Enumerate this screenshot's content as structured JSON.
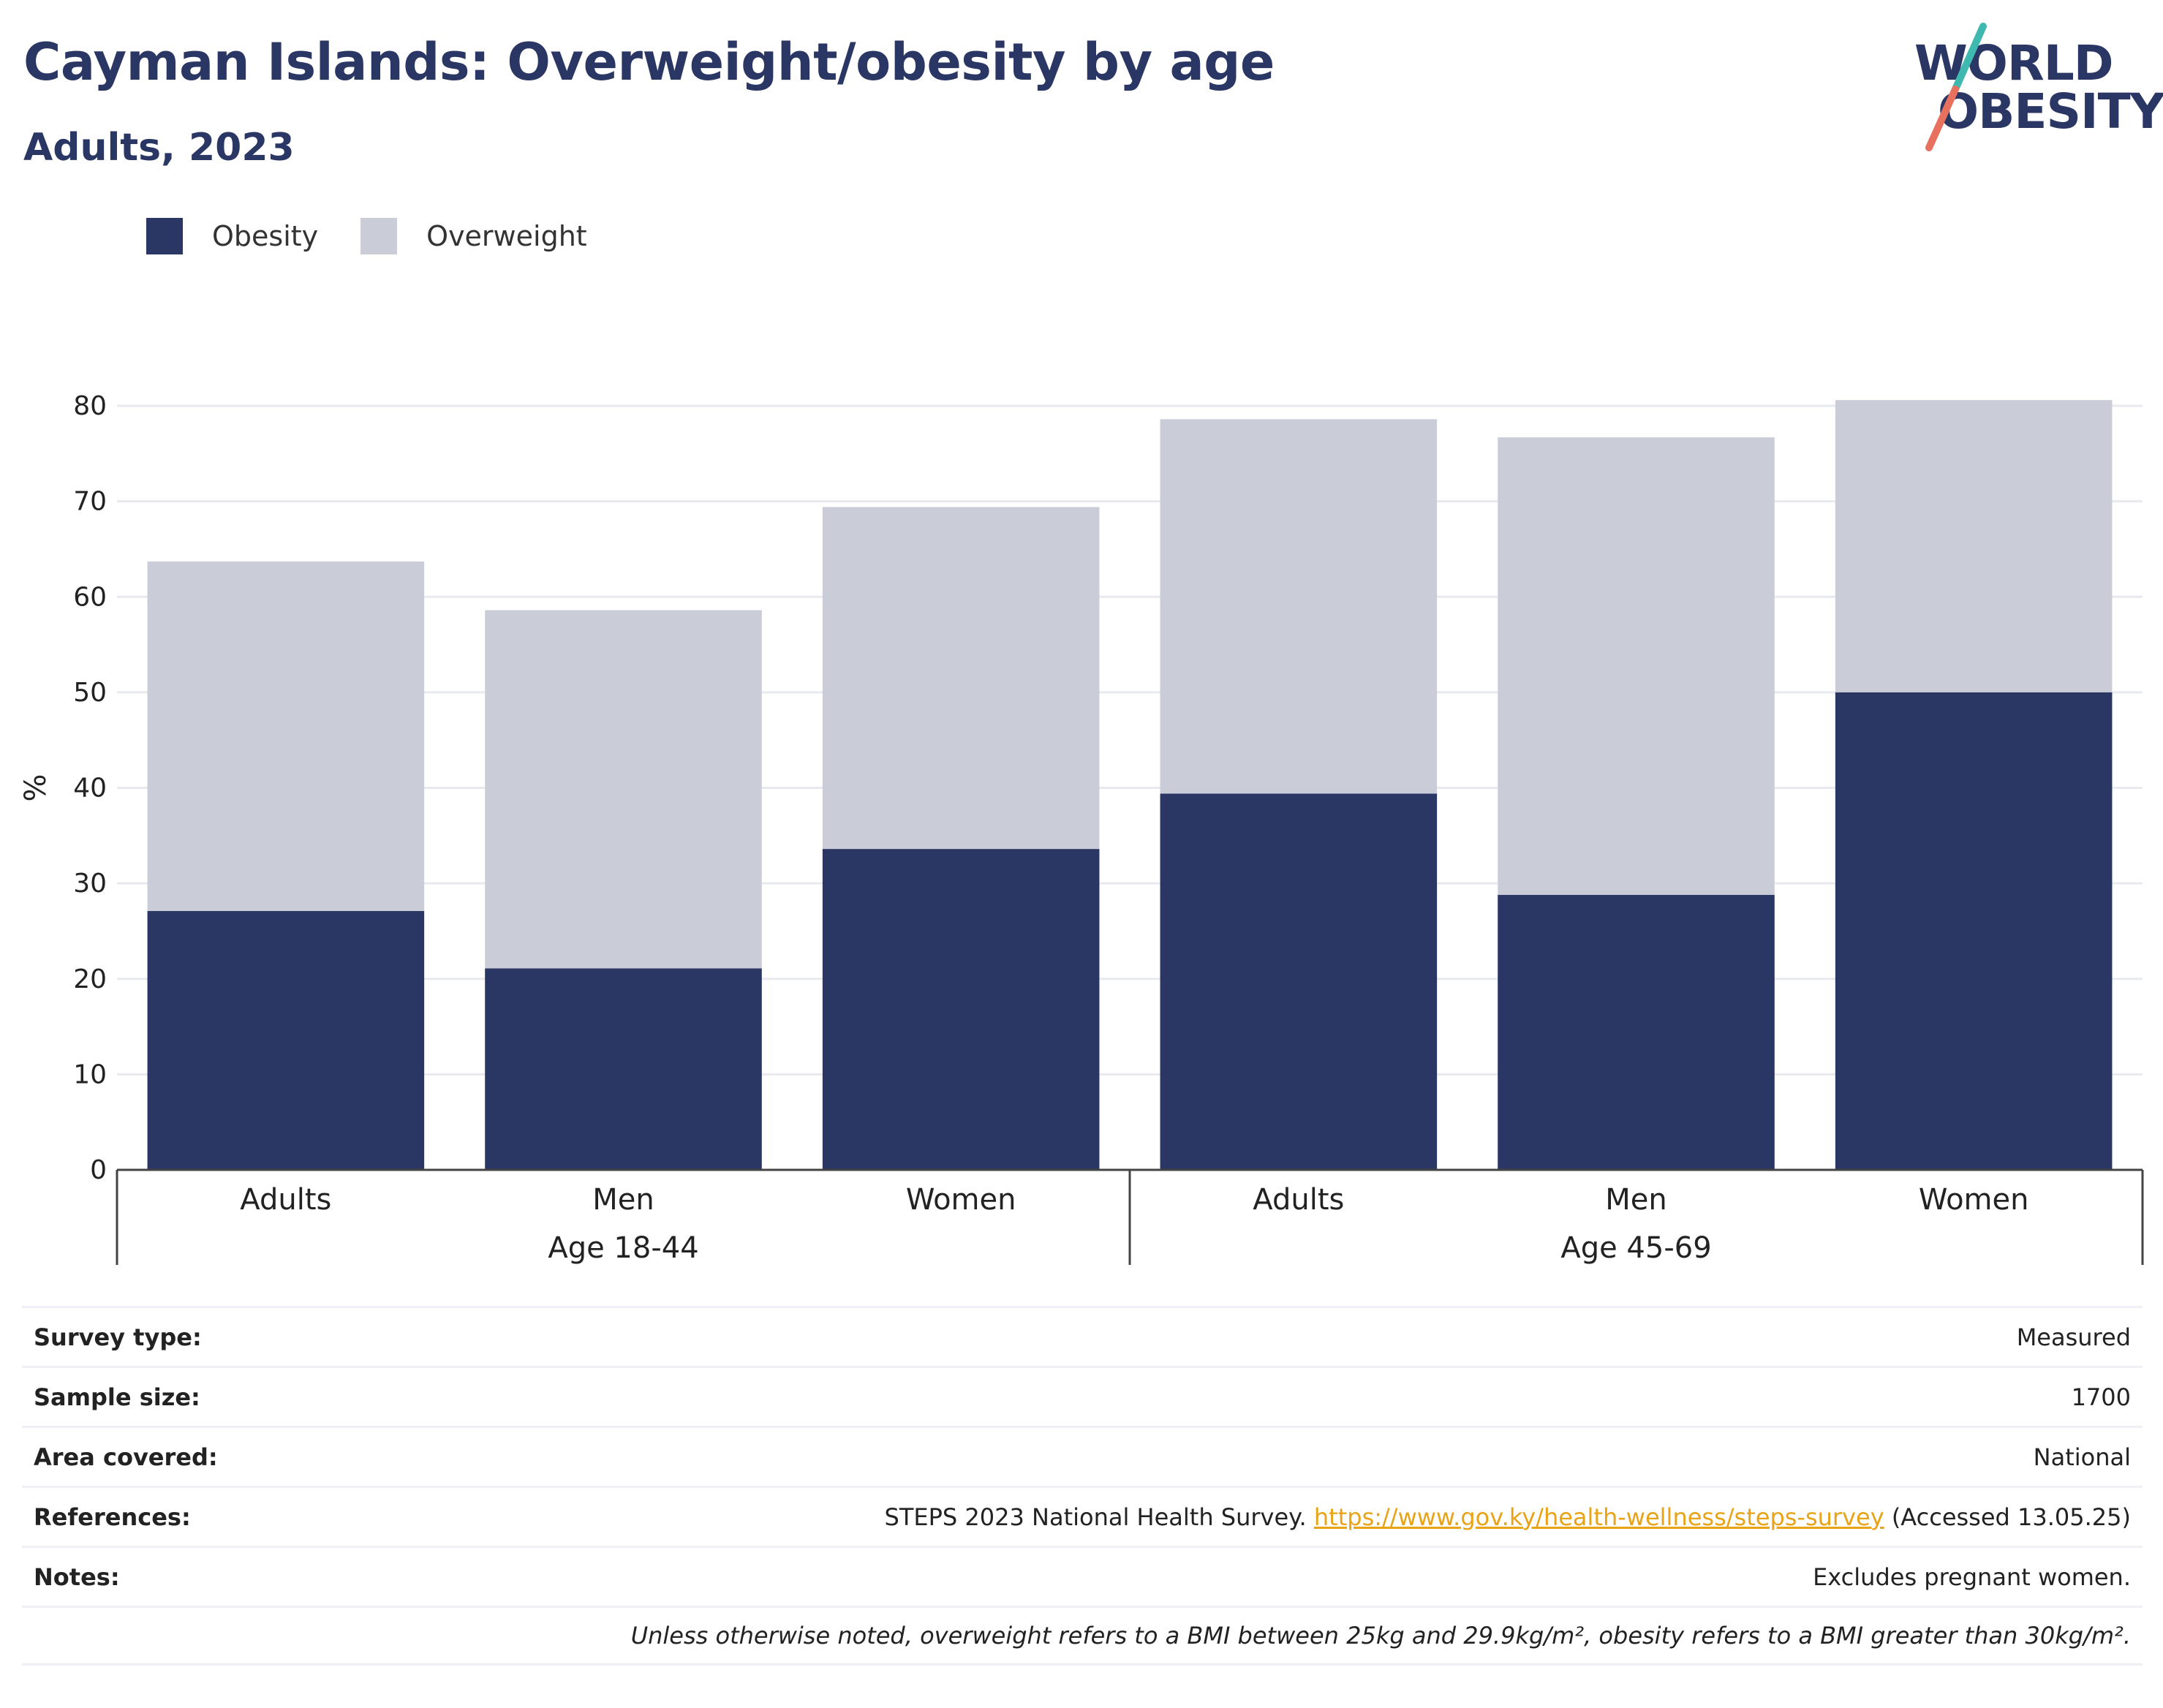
{
  "header": {
    "title": "Cayman Islands: Overweight/obesity by age",
    "subtitle": "Adults, 2023"
  },
  "logo": {
    "line1": "WORLD",
    "line2": "OBESITY",
    "colors": {
      "text": "#2a3663",
      "slash_top": "#3fb8b0",
      "slash_bottom": "#e8705e"
    }
  },
  "legend": {
    "items": [
      {
        "label": "Obesity",
        "color": "#2a3663"
      },
      {
        "label": "Overweight",
        "color": "#cacdd8"
      }
    ]
  },
  "chart_data": {
    "type": "bar",
    "stacked": true,
    "ylabel": "%",
    "ylim": [
      0,
      80
    ],
    "yticks": [
      0,
      10,
      20,
      30,
      40,
      50,
      60,
      70,
      80
    ],
    "grid": true,
    "legend_position": "top-left",
    "groups": [
      {
        "label": "Age 18-44",
        "categories": [
          "Adults",
          "Men",
          "Women"
        ]
      },
      {
        "label": "Age 45-69",
        "categories": [
          "Adults",
          "Men",
          "Women"
        ]
      }
    ],
    "categories": [
      "Adults",
      "Men",
      "Women",
      "Adults",
      "Men",
      "Women"
    ],
    "series": [
      {
        "name": "Obesity",
        "color": "#2a3663",
        "values": [
          27.1,
          21.1,
          33.6,
          39.4,
          28.8,
          50.0
        ]
      },
      {
        "name": "Overweight",
        "color": "#cacdd8",
        "values": [
          36.6,
          37.5,
          35.8,
          39.2,
          47.9,
          30.6
        ]
      }
    ]
  },
  "info": {
    "survey_type_label": "Survey type:",
    "survey_type_value": "Measured",
    "sample_size_label": "Sample size:",
    "sample_size_value": "1700",
    "area_label": "Area covered:",
    "area_value": "National",
    "references_label": "References:",
    "references_prefix": "STEPS 2023 National Health Survey. ",
    "references_link": "https://www.gov.ky/health-wellness/steps-survey",
    "references_suffix": " (Accessed 13.05.25)",
    "notes_label": "Notes:",
    "notes_value": "Excludes pregnant women.",
    "footnote": "Unless otherwise noted, overweight refers to a BMI between 25kg and 29.9kg/m², obesity refers to a BMI greater than 30kg/m²."
  }
}
